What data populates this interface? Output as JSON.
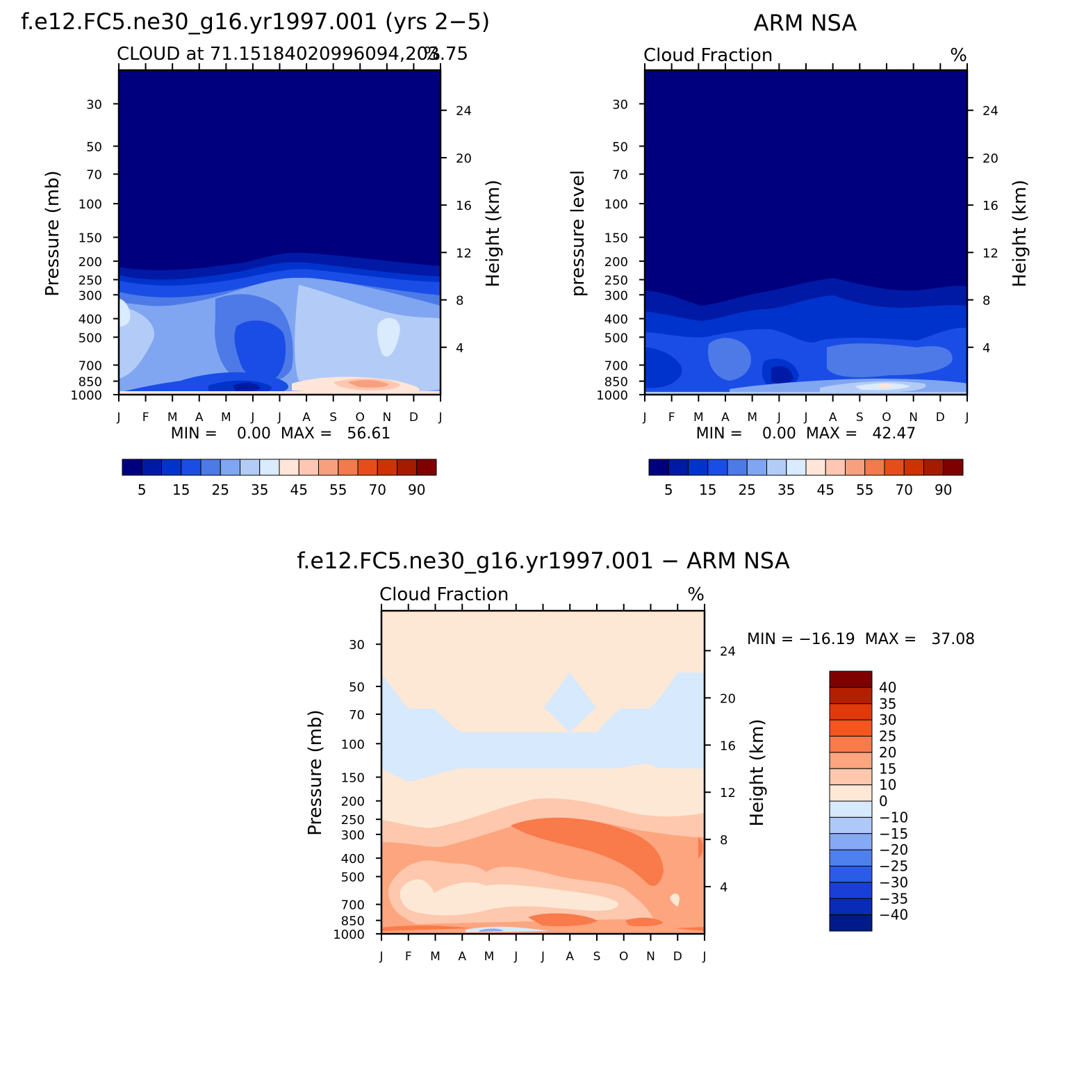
{
  "panels": [
    {
      "id": "model",
      "header": "f.e12.FC5.ne30_g16.yr1997.001 (yrs 2−5)",
      "left_label": "CLOUD at 71.15184020996094,203.75",
      "right_label": "%",
      "minmax": "MIN =    0.00  MAX =   56.61",
      "ylabel": "Pressure (mb)",
      "y2label": "Height (km)"
    },
    {
      "id": "obs",
      "header": "ARM NSA",
      "left_label": "Cloud Fraction",
      "right_label": "%",
      "minmax": "MIN =    0.00  MAX =   42.47",
      "ylabel": "pressure level",
      "y2label": "Height (km)"
    },
    {
      "id": "diff",
      "header": "f.e12.FC5.ne30_g16.yr1997.001 − ARM NSA",
      "left_label": "Cloud Fraction",
      "right_label": "%",
      "minmax": "MIN = −16.19  MAX =   37.08",
      "ylabel": "Pressure (mb)",
      "y2label": "Height (km)"
    }
  ],
  "colorbar_abs": {
    "colors": [
      "#00007f",
      "#001aa6",
      "#0033cc",
      "#1a4de6",
      "#4d7ae6",
      "#80a6f2",
      "#b3ccf7",
      "#d9ebfc",
      "#ffe6d9",
      "#ffc7b3",
      "#f7a080",
      "#f27a4d",
      "#e64d1a",
      "#cc3300",
      "#a61a00",
      "#7f0000"
    ],
    "labels": [
      "5",
      "15",
      "25",
      "35",
      "45",
      "55",
      "70",
      "90"
    ]
  },
  "colorbar_diff": {
    "colors": [
      "#7f0000",
      "#b32000",
      "#e03a0a",
      "#f5551f",
      "#f97a4a",
      "#fca57f",
      "#fdc8ad",
      "#fde8d6",
      "#d6e9fd",
      "#aec9f8",
      "#86a9f5",
      "#4f80ee",
      "#2a5ce8",
      "#1a3fd8",
      "#0a2ab8",
      "#001a8c"
    ],
    "labels": [
      "40",
      "35",
      "30",
      "25",
      "20",
      "15",
      "10",
      "0",
      "−10",
      "−15",
      "−20",
      "−25",
      "−30",
      "−35",
      "−40"
    ]
  },
  "chart_data": [
    {
      "type": "heatmap",
      "title": "CLOUD at 71.15184020996094,203.75",
      "x": [
        "J",
        "F",
        "M",
        "A",
        "M",
        "J",
        "J",
        "A",
        "S",
        "O",
        "N",
        "D",
        "J"
      ],
      "yticks_pressure": [
        30,
        50,
        70,
        100,
        150,
        200,
        250,
        300,
        400,
        500,
        700,
        850,
        1000
      ],
      "yticks_height": [
        24,
        20,
        16,
        12,
        8,
        4
      ],
      "ylabel": "Pressure (mb)",
      "y2label": "Height (km)",
      "min": 0.0,
      "max": 56.61,
      "units": "%"
    },
    {
      "type": "heatmap",
      "title": "Cloud Fraction",
      "x": [
        "J",
        "F",
        "M",
        "A",
        "M",
        "J",
        "J",
        "A",
        "S",
        "O",
        "N",
        "D",
        "J"
      ],
      "yticks_pressure": [
        30,
        50,
        70,
        100,
        150,
        200,
        250,
        300,
        400,
        500,
        700,
        850,
        1000
      ],
      "yticks_height": [
        24,
        20,
        16,
        12,
        8,
        4
      ],
      "ylabel": "pressure level",
      "y2label": "Height (km)",
      "min": 0.0,
      "max": 42.47,
      "units": "%"
    },
    {
      "type": "heatmap",
      "title": "Cloud Fraction",
      "x": [
        "J",
        "F",
        "M",
        "A",
        "M",
        "J",
        "J",
        "A",
        "S",
        "O",
        "N",
        "D",
        "J"
      ],
      "yticks_pressure": [
        30,
        50,
        70,
        100,
        150,
        200,
        250,
        300,
        400,
        500,
        700,
        850,
        1000
      ],
      "yticks_height": [
        24,
        20,
        16,
        12,
        8,
        4
      ],
      "ylabel": "Pressure (mb)",
      "y2label": "Height (km)",
      "min": -16.19,
      "max": 37.08,
      "units": "%"
    }
  ]
}
